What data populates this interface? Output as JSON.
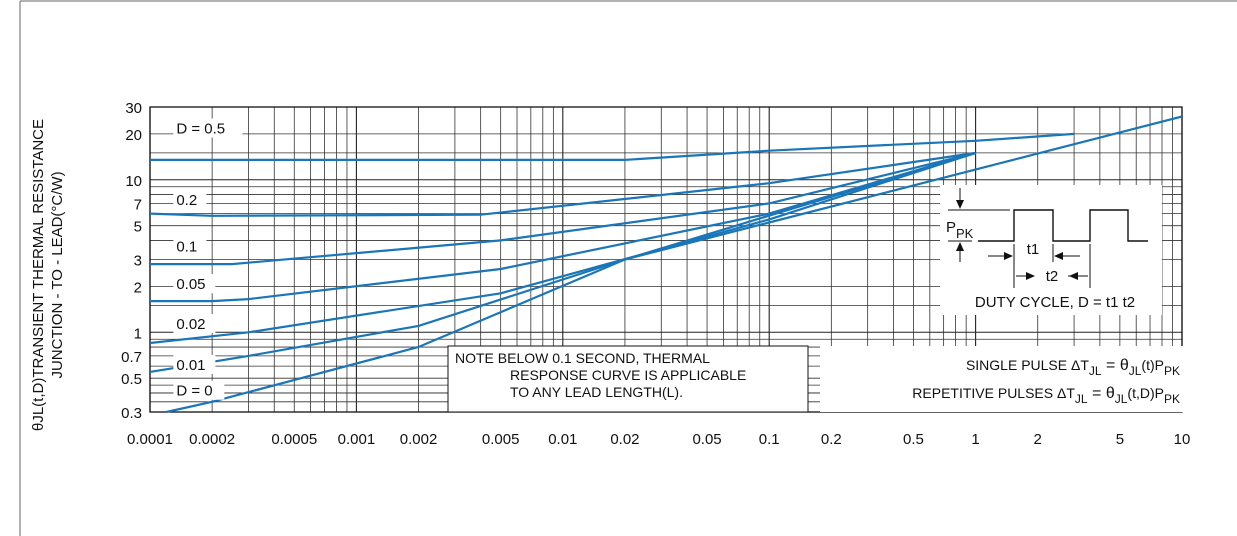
{
  "chart_data": {
    "type": "line",
    "title": "",
    "xlabel": "",
    "ylabel_line1": "θJL(t,D)TRANSIENT THERMAL RESISTANCE",
    "ylabel_line2": "JUNCTION - TO - LEAD(°C/W)",
    "x_scale": "log",
    "y_scale": "log",
    "xlim": [
      0.0001,
      10
    ],
    "ylim": [
      0.3,
      30
    ],
    "x_ticks": [
      0.0001,
      0.0002,
      0.0005,
      0.001,
      0.002,
      0.005,
      0.01,
      0.02,
      0.05,
      0.1,
      0.2,
      0.5,
      1,
      2,
      5,
      10
    ],
    "x_tick_labels": [
      "0.0001",
      "0.0002",
      "0.0005",
      "0.001",
      "0.002",
      "0.005",
      "0.01",
      "0.02",
      "0.05",
      "0.1",
      "0.2",
      "0.5",
      "1",
      "2",
      "5",
      "10"
    ],
    "y_ticks": [
      0.3,
      0.5,
      0.7,
      1,
      2,
      3,
      5,
      7,
      10,
      20,
      30
    ],
    "y_tick_labels": [
      "0.3",
      "0.5",
      "0.7",
      "1",
      "2",
      "3",
      "5",
      "7",
      "10",
      "20",
      "30"
    ],
    "grid": true,
    "series": [
      {
        "name": "D = 0.5",
        "x": [
          0.0001,
          0.02,
          0.1,
          1,
          3
        ],
        "y": [
          13.5,
          13.5,
          15.5,
          18,
          20
        ]
      },
      {
        "name": "0.2",
        "x": [
          0.0001,
          0.0002,
          0.004,
          0.1,
          1
        ],
        "y": [
          6,
          5.8,
          5.9,
          9.5,
          15
        ]
      },
      {
        "name": "0.1",
        "x": [
          0.0001,
          0.00025,
          0.005,
          0.1,
          1
        ],
        "y": [
          2.8,
          2.8,
          4,
          7,
          15
        ]
      },
      {
        "name": "0.05",
        "x": [
          0.0001,
          0.0002,
          0.0003,
          0.005,
          0.1,
          1
        ],
        "y": [
          1.6,
          1.6,
          1.65,
          2.6,
          6,
          15
        ]
      },
      {
        "name": "0.02",
        "x": [
          0.0001,
          0.0003,
          0.005,
          0.1,
          1
        ],
        "y": [
          0.85,
          1,
          1.8,
          5.5,
          15
        ]
      },
      {
        "name": "0.01",
        "x": [
          0.0001,
          0.0003,
          0.002,
          0.02,
          1
        ],
        "y": [
          0.55,
          0.7,
          1.1,
          3,
          15
        ]
      },
      {
        "name": "D = 0",
        "x": [
          0.00012,
          0.0002,
          0.002,
          0.02,
          10
        ],
        "y": [
          0.3,
          0.35,
          0.8,
          3,
          26
        ]
      }
    ],
    "inset": {
      "ppk_label": "P",
      "ppk_sub": "PK",
      "t1_label": "t1",
      "t2_label": "t2",
      "duty_cycle": "DUTY CYCLE, D = t1 t2"
    },
    "note": {
      "line1": "NOTE BELOW 0.1 SECOND, THERMAL",
      "line2": "RESPONSE CURVE IS APPLICABLE",
      "line3": "TO ANY LEAD LENGTH(L)."
    },
    "formulas": {
      "single_prefix": "SINGLE PULSE ΔT",
      "single_sub1": "JL",
      "single_eq": " = θ",
      "single_sub2": "JL",
      "single_mid": "(t)P",
      "single_sub3": "PK",
      "rep_prefix": "REPETITIVE PULSES ΔT",
      "rep_sub1": "JL",
      "rep_eq": " = θ",
      "rep_sub2": "JL",
      "rep_mid": "(t,D)P",
      "rep_sub3": "PK"
    }
  }
}
